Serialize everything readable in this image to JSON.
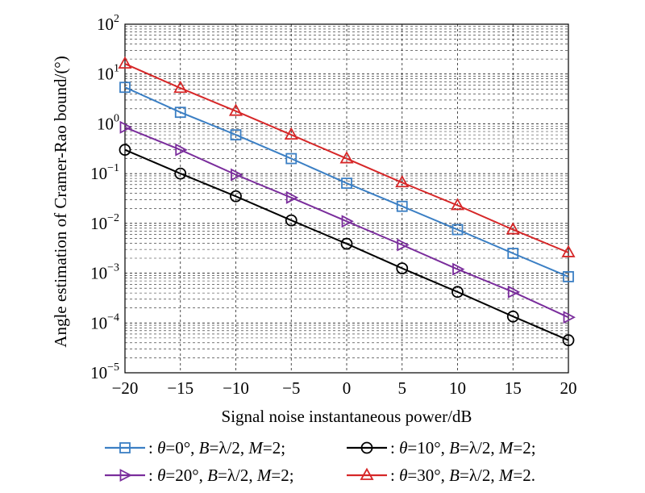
{
  "chart_data": {
    "type": "line",
    "title": "",
    "xlabel": "Signal noise instantaneous power/dB",
    "ylabel": "Angle estimation of Cramer-Rao bound/(°)",
    "xlim": [
      -20,
      20
    ],
    "ylim": [
      1e-05,
      100
    ],
    "yscale": "log",
    "grid": true,
    "x": [
      -20,
      -15,
      -10,
      -5,
      0,
      5,
      10,
      15,
      20
    ],
    "x_tick_labels": [
      "−20",
      "−15",
      "−10",
      "−5",
      "0",
      "5",
      "10",
      "15",
      "20"
    ],
    "y_ticks": [
      {
        "base": "10",
        "exp": "−5",
        "value": 1e-05
      },
      {
        "base": "10",
        "exp": "−4",
        "value": 0.0001
      },
      {
        "base": "10",
        "exp": "−3",
        "value": 0.001
      },
      {
        "base": "10",
        "exp": "−2",
        "value": 0.01
      },
      {
        "base": "10",
        "exp": "−1",
        "value": 0.1
      },
      {
        "base": "10",
        "exp": "0",
        "value": 1
      },
      {
        "base": "10",
        "exp": "1",
        "value": 10
      },
      {
        "base": "10",
        "exp": "2",
        "value": 100
      }
    ],
    "legend_placement": "bottom",
    "series": [
      {
        "name": "θ=0°",
        "theta": "0°",
        "B": "λ/2",
        "M": "2",
        "end": ";",
        "marker": "square",
        "color": "#3b7fc4",
        "values": [
          5.4,
          1.7,
          0.6,
          0.2,
          0.064,
          0.022,
          0.0075,
          0.0025,
          0.00085
        ]
      },
      {
        "name": "θ=10°",
        "theta": "10°",
        "B": "λ/2",
        "M": "2",
        "end": ";",
        "marker": "circle",
        "color": "#000000",
        "values": [
          0.3,
          0.1,
          0.035,
          0.0115,
          0.0039,
          0.00125,
          0.00042,
          0.000135,
          4.5e-05
        ]
      },
      {
        "name": "θ=20°",
        "theta": "20°",
        "B": "λ/2",
        "M": "2",
        "end": ";",
        "marker": "triangle-right",
        "color": "#7a2d9c",
        "values": [
          0.85,
          0.3,
          0.095,
          0.033,
          0.011,
          0.0037,
          0.0012,
          0.00042,
          0.00013
        ]
      },
      {
        "name": "θ=30°",
        "theta": "30°",
        "B": "λ/2",
        "M": "2",
        "end": ".",
        "marker": "triangle-up",
        "color": "#d62728",
        "values": [
          16,
          5.2,
          1.8,
          0.6,
          0.2,
          0.066,
          0.023,
          0.0075,
          0.0026
        ]
      }
    ]
  },
  "legend_labels": {
    "theta_symbol": "θ",
    "B_symbol": "B",
    "M_symbol": "M",
    "lambda_half": "λ/2",
    "equals": "=",
    "prefix": ": ",
    "separator": ", "
  }
}
